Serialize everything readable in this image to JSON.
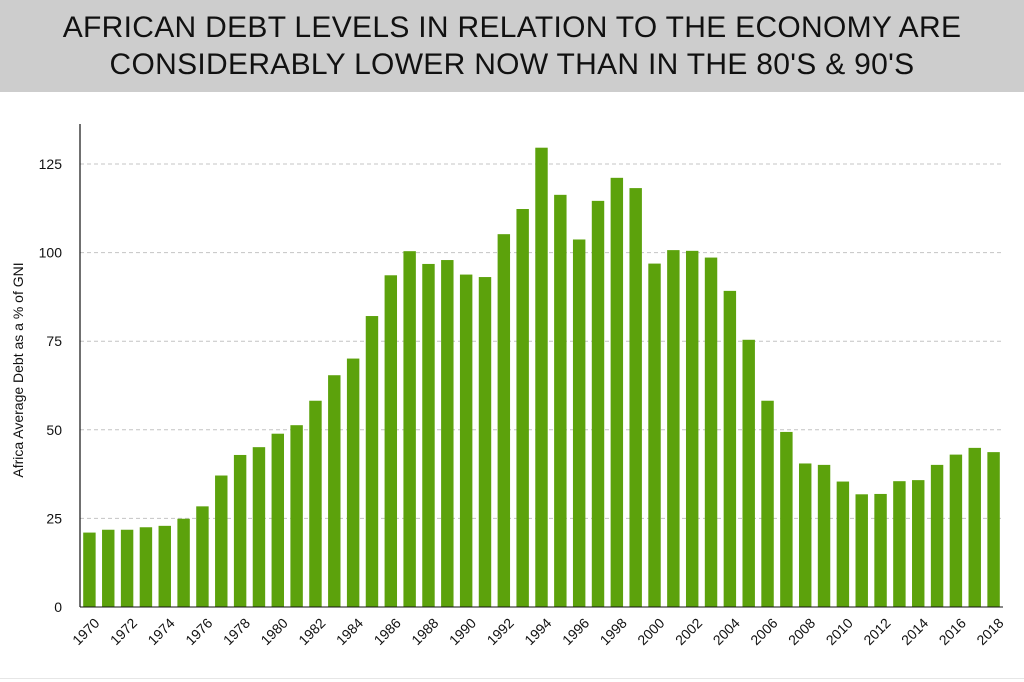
{
  "header": {
    "title_line1": "AFRICAN DEBT LEVELS IN RELATION TO THE ECONOMY ARE",
    "title_line2": "CONSIDERABLY LOWER NOW THAN IN THE 80'S & 90'S"
  },
  "chart_data": {
    "type": "bar",
    "title": "AFRICAN DEBT LEVELS IN RELATION TO THE ECONOMY ARE CONSIDERABLY LOWER NOW THAN IN THE 80'S & 90'S",
    "xlabel": "",
    "ylabel": "Africa Average Debt as a % of GNI",
    "ylim": [
      0,
      137
    ],
    "yticks": [
      0,
      25,
      50,
      75,
      100,
      125
    ],
    "grid": "horizontal dashed",
    "bar_color": "#5ca20c",
    "categories": [
      "1970",
      "1971",
      "1972",
      "1973",
      "1974",
      "1975",
      "1976",
      "1977",
      "1978",
      "1979",
      "1980",
      "1981",
      "1982",
      "1983",
      "1984",
      "1985",
      "1986",
      "1987",
      "1988",
      "1989",
      "1990",
      "1991",
      "1992",
      "1993",
      "1994",
      "1995",
      "1996",
      "1997",
      "1998",
      "1999",
      "2000",
      "2001",
      "2002",
      "2003",
      "2004",
      "2005",
      "2006",
      "2007",
      "2008",
      "2009",
      "2010",
      "2011",
      "2012",
      "2013",
      "2014",
      "2015",
      "2016",
      "2017",
      "2018"
    ],
    "xtick_labels": [
      "1970",
      "1972",
      "1974",
      "1976",
      "1978",
      "1980",
      "1982",
      "1984",
      "1986",
      "1988",
      "1990",
      "1992",
      "1994",
      "1996",
      "1998",
      "2000",
      "2002",
      "2004",
      "2006",
      "2008",
      "2010",
      "2012",
      "2014",
      "2016",
      "2018"
    ],
    "values": [
      21,
      21.8,
      21.8,
      22.5,
      22.9,
      24.9,
      28.4,
      37.1,
      42.9,
      45.1,
      48.9,
      51.3,
      58.2,
      65.4,
      70.1,
      82.1,
      93.6,
      100.4,
      96.8,
      97.9,
      93.8,
      93.1,
      105.2,
      112.3,
      129.6,
      116.3,
      103.7,
      114.6,
      121.1,
      118.2,
      96.9,
      100.7,
      100.5,
      98.6,
      89.2,
      75.4,
      58.2,
      49.4,
      40.5,
      40.1,
      35.4,
      31.8,
      31.9,
      35.5,
      35.8,
      40.1,
      43,
      44.9,
      43.7
    ]
  }
}
